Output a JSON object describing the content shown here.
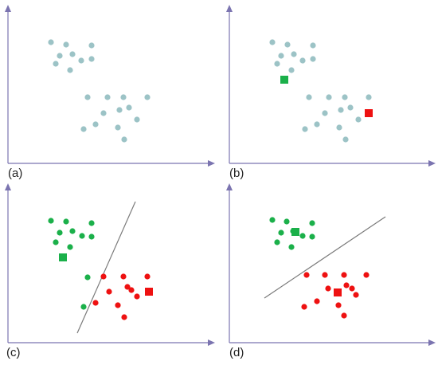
{
  "colors": {
    "axis": "#7b74b0",
    "unassigned": "#9cc3c6",
    "cluster_green": "#1bb04a",
    "cluster_red": "#ee1111",
    "boundary": "#7a7a7a"
  },
  "panels": [
    {
      "label": "(a)",
      "show_centroids": false,
      "colored": false,
      "boundary": false
    },
    {
      "label": "(b)",
      "show_centroids": true,
      "colored": false,
      "boundary": false
    },
    {
      "label": "(c)",
      "show_centroids": true,
      "colored": true,
      "boundary": true
    },
    {
      "label": "(d)",
      "show_centroids": true,
      "colored": true,
      "boundary": true
    }
  ]
}
